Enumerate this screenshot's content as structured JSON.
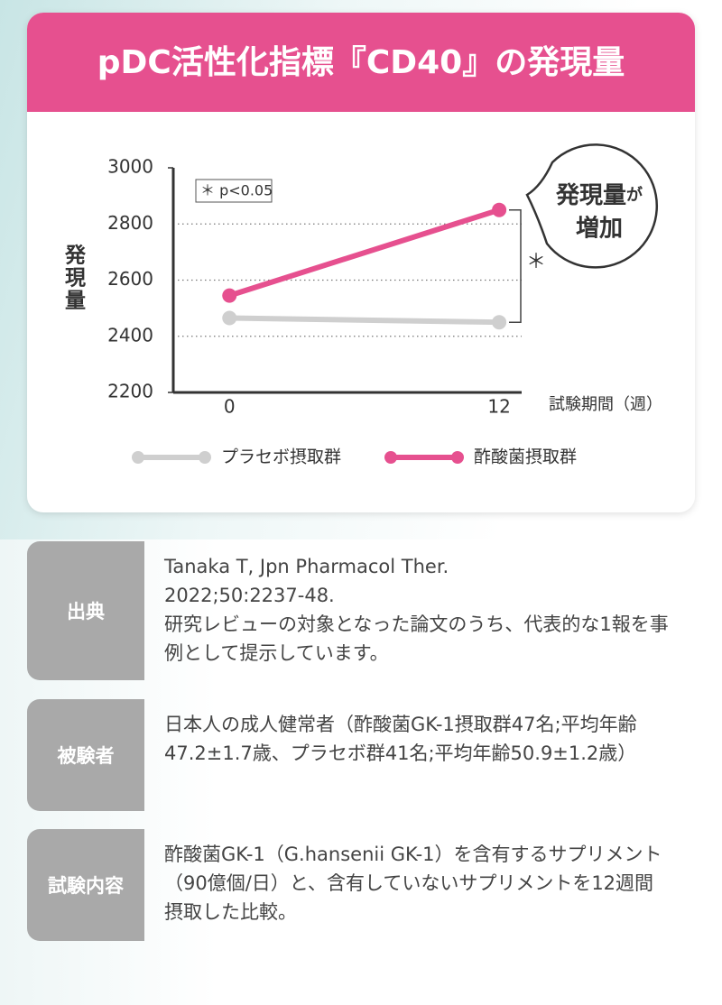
{
  "chart_data": {
    "type": "line",
    "title": "pDC活性化指標『CD40』の発現量",
    "y_label": "発現量",
    "x_label": "試験期間（週）",
    "x": [
      0,
      12
    ],
    "xlim": [
      -2.5,
      13
    ],
    "xticks": [
      0,
      12
    ],
    "ylim": [
      2200,
      3000
    ],
    "yticks": [
      2200,
      2400,
      2600,
      2800,
      3000
    ],
    "grid": true,
    "series": [
      {
        "name": "プラセボ摂取群",
        "color": "#cfcfcf",
        "values": [
          2465,
          2450
        ]
      },
      {
        "name": "酢酸菌摂取群",
        "color": "#e6508f",
        "values": [
          2545,
          2850
        ]
      }
    ],
    "significance_note": "＊ p<0.05",
    "significance_mark": "＊",
    "callout_parts": [
      "発現量",
      "が",
      "増加"
    ]
  },
  "info": {
    "rows": [
      {
        "label": "出典",
        "paragraphs": [
          "Tanaka T, Jpn Pharmacol Ther. 2022;50:2237-48.",
          "研究レビューの対象となった論文のうち、代表的な1報を事例として提示しています。"
        ]
      },
      {
        "label": "被験者",
        "paragraphs": [
          "日本人の成人健常者（酢酸菌GK-1摂取群47名;平均年齢47.2±1.7歳、プラセボ群41名;平均年齢50.9±1.2歳）"
        ]
      },
      {
        "label": "試験内容",
        "paragraphs": [
          "酢酸菌GK-1（G.hansenii GK-1）を含有するサプリメント（90億個/日）と、含有していないサプリメントを12週間摂取した比較。"
        ]
      }
    ]
  }
}
